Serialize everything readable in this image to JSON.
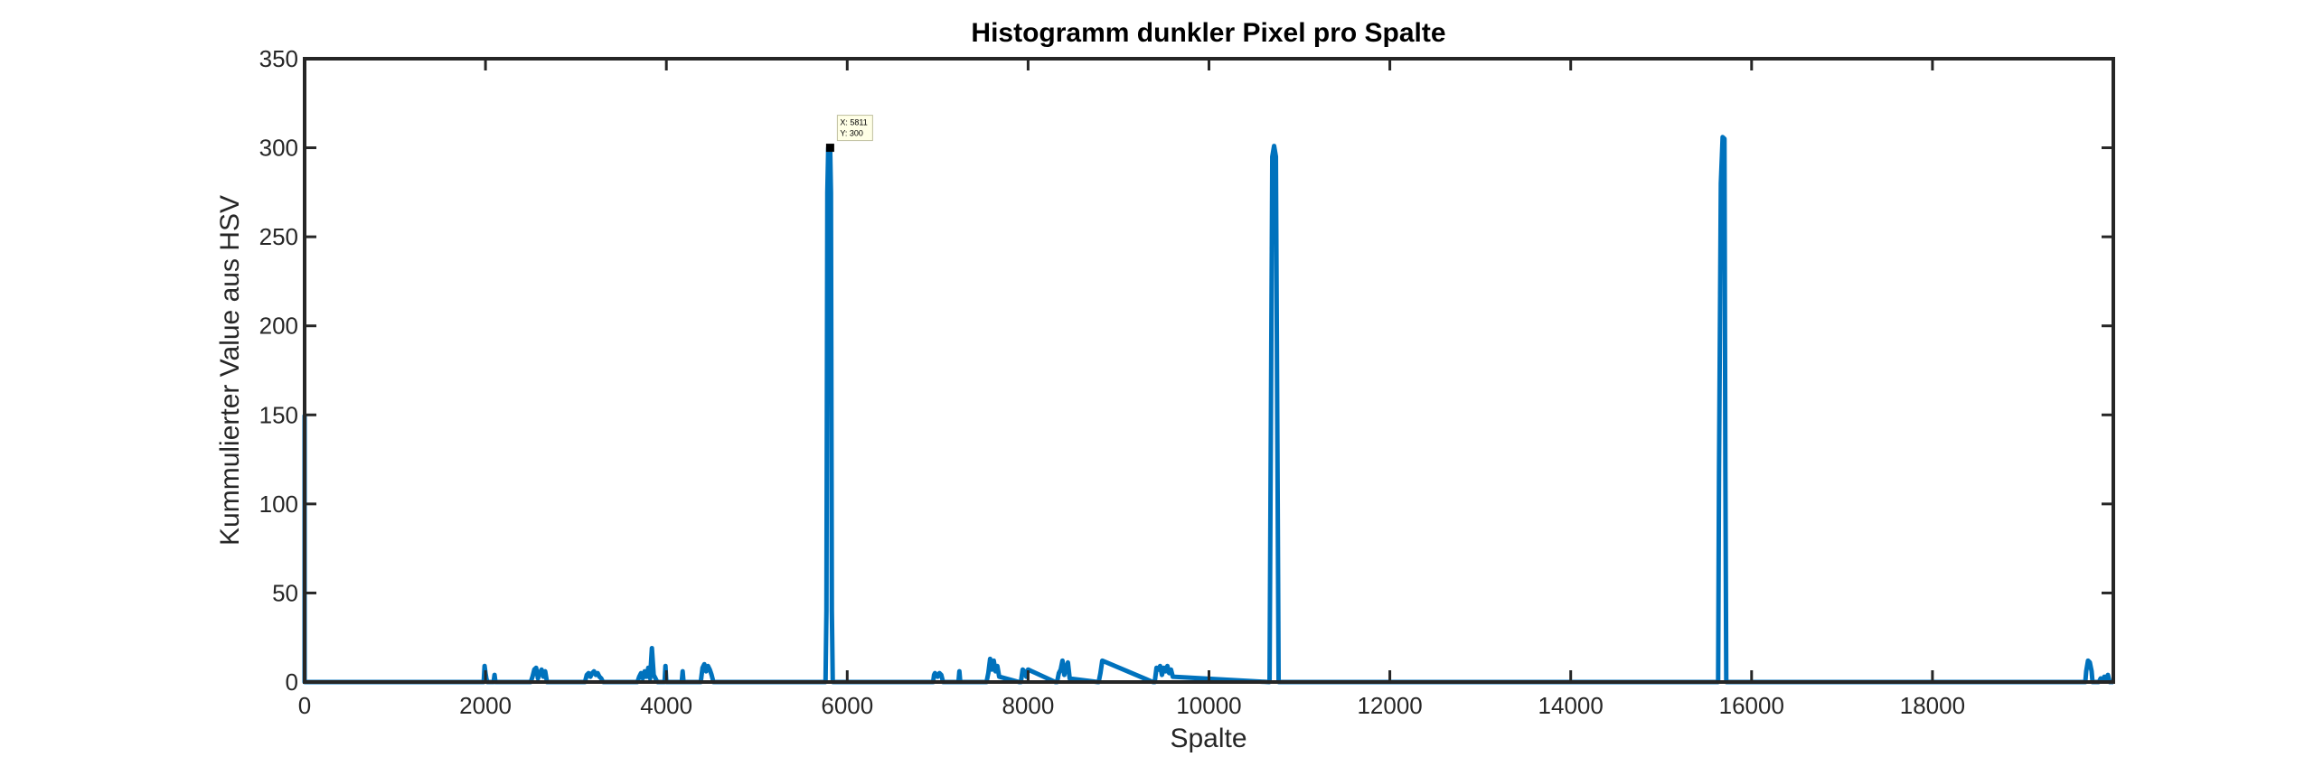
{
  "chart_data": {
    "type": "line",
    "title": "Histogramm dunkler Pixel pro Spalte",
    "xlabel": "Spalte",
    "ylabel": "Kummulierter Value aus HSV",
    "xlim": [
      0,
      20000
    ],
    "ylim": [
      0,
      350
    ],
    "xticks": [
      0,
      2000,
      4000,
      6000,
      8000,
      10000,
      12000,
      14000,
      16000,
      18000
    ],
    "xtick_labels": [
      "0",
      "2000",
      "4000",
      "6000",
      "8000",
      "10000",
      "12000",
      "14000",
      "16000",
      "18000"
    ],
    "yticks": [
      0,
      50,
      100,
      150,
      200,
      250,
      300,
      350
    ],
    "ytick_labels": [
      "0",
      "50",
      "100",
      "150",
      "200",
      "250",
      "300",
      "350"
    ],
    "grid": false,
    "legend": "none",
    "line_color": "#0072BD",
    "series": [
      {
        "x": [
          0,
          0,
          10,
          20,
          1980,
          1990,
          2000,
          2010,
          2020,
          2090,
          2100,
          2110,
          2500,
          2520,
          2540,
          2560,
          2580,
          2600,
          2620,
          2640,
          2660,
          2680,
          3100,
          3120,
          3140,
          3160,
          3180,
          3200,
          3220,
          3240,
          3260,
          3280,
          3300,
          3680,
          3700,
          3720,
          3740,
          3760,
          3780,
          3800,
          3820,
          3840,
          3860,
          3880,
          3900,
          3980,
          3990,
          4000,
          4170,
          4180,
          4190,
          4380,
          4400,
          4420,
          4440,
          4460,
          4480,
          4500,
          4520,
          5760,
          5770,
          5780,
          5790,
          5800,
          5811,
          5820,
          5830,
          5840,
          6950,
          6960,
          6970,
          7000,
          7020,
          7040,
          7060,
          7230,
          7240,
          7250,
          7540,
          7560,
          7580,
          7600,
          7620,
          7640,
          7660,
          7680,
          7900,
          7920,
          7940,
          7960,
          7980,
          8000,
          8300,
          8320,
          8340,
          8360,
          8380,
          8400,
          8420,
          8440,
          8460,
          8770,
          8780,
          8800,
          8820,
          9380,
          9400,
          9420,
          9440,
          9460,
          9480,
          9500,
          9520,
          9540,
          9560,
          9580,
          9600,
          10660,
          10670,
          10680,
          10700,
          10720,
          10740,
          10760,
          10770,
          15620,
          15630,
          15640,
          15660,
          15680,
          15700,
          15710,
          15720,
          19680,
          19690,
          19700,
          19720,
          19740,
          19760,
          19770,
          19840,
          19860,
          19880,
          19900,
          19920,
          19940,
          19960,
          20000
        ],
        "y": [
          150,
          0,
          0,
          0,
          0,
          9,
          5,
          2,
          0,
          0,
          4,
          0,
          0,
          3,
          7,
          8,
          2,
          5,
          7,
          3,
          6,
          0,
          0,
          4,
          5,
          3,
          5,
          6,
          4,
          5,
          3,
          2,
          0,
          0,
          3,
          5,
          2,
          6,
          3,
          8,
          2,
          19,
          4,
          2,
          0,
          0,
          9,
          0,
          0,
          6,
          0,
          0,
          8,
          10,
          6,
          9,
          7,
          4,
          0,
          0,
          40,
          275,
          300,
          300,
          300,
          275,
          40,
          0,
          0,
          4,
          5,
          3,
          5,
          4,
          0,
          0,
          6,
          0,
          0,
          5,
          13,
          7,
          12,
          6,
          9,
          3,
          0,
          0,
          7,
          6,
          3,
          7,
          0,
          0,
          5,
          7,
          12,
          4,
          8,
          11,
          2,
          0,
          0,
          5,
          12,
          0,
          0,
          8,
          7,
          9,
          4,
          8,
          6,
          9,
          5,
          7,
          3,
          0,
          0,
          100,
          295,
          301,
          295,
          100,
          0,
          0,
          0,
          120,
          280,
          306,
          305,
          120,
          0,
          0,
          0,
          6,
          12,
          11,
          6,
          0,
          0,
          2,
          1,
          3,
          2,
          4,
          0,
          0
        ]
      }
    ],
    "datatip": {
      "line1": "X: 5811",
      "line2": "Y: 300",
      "x": 5811,
      "y": 300
    }
  }
}
